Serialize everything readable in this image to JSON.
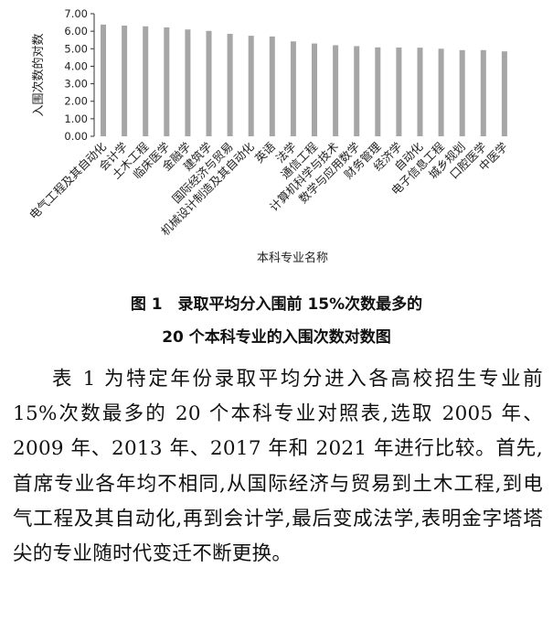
{
  "chart_data": {
    "type": "bar",
    "ylabel": "入围次数的对数",
    "xlabel": "本科专业名称",
    "ylim": [
      0,
      7
    ],
    "yticks": [
      "0.00",
      "1.00",
      "2.00",
      "3.00",
      "4.00",
      "5.00",
      "6.00",
      "7.00"
    ],
    "grid": false,
    "bar_color": "#a6a6a6",
    "categories": [
      "电气工程及其自动化",
      "会计学",
      "土木工程",
      "临床医学",
      "金融学",
      "建筑学",
      "国际经济与贸易",
      "机械设计制造及其自动化",
      "英语",
      "法学",
      "通信工程",
      "计算机科学与技术",
      "数学与应用数学",
      "财务管理",
      "经济学",
      "自动化",
      "电子信息工程",
      "城乡规划",
      "口腔医学",
      "中医学"
    ],
    "values": [
      6.38,
      6.32,
      6.28,
      6.22,
      6.1,
      6.02,
      5.85,
      5.74,
      5.7,
      5.42,
      5.3,
      5.2,
      5.15,
      5.08,
      5.07,
      5.06,
      5.0,
      4.92,
      4.92,
      4.85
    ]
  },
  "caption": {
    "line1": "图 1　录取平均分入围前 15%次数最多的",
    "line2": "20 个本科专业的入围次数对数图"
  },
  "body": {
    "paragraph": "表 1 为特定年份录取平均分进入各高校招生专业前 15%次数最多的 20 个本科专业对照表,选取 2005 年、2009 年、2013 年、2017 年和 2021 年进行比较。首先,首席专业各年均不相同,从国际经济与贸易到土木工程,到电气工程及其自动化,再到会计学,最后变成法学,表明金字塔塔尖的专业随时代变迁不断更换。"
  }
}
